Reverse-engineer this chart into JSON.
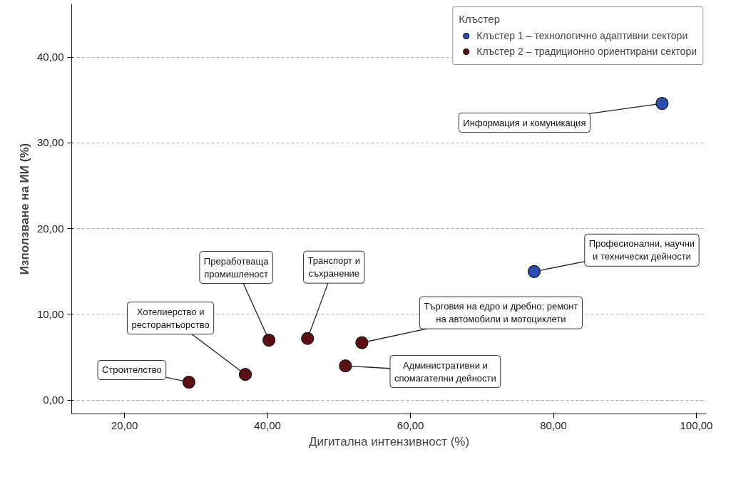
{
  "chart_data": {
    "type": "scatter",
    "xlabel": "Дигитална интензивност (%)",
    "ylabel": "Използване на ИИ (%)",
    "legend_title": "Клъстер",
    "legend": "top right",
    "grid": "y",
    "marker": "circle",
    "xlim": [
      12.6,
      101.4
    ],
    "ylim": [
      -1.6,
      46.2
    ],
    "xticks": [
      {
        "value": 20,
        "label": "20,00"
      },
      {
        "value": 40,
        "label": "40,00"
      },
      {
        "value": 60,
        "label": "60,00"
      },
      {
        "value": 80,
        "label": "80,00"
      },
      {
        "value": 100,
        "label": "100,00"
      }
    ],
    "yticks": [
      {
        "value": 0,
        "label": "0,00"
      },
      {
        "value": 10,
        "label": "10,00"
      },
      {
        "value": 20,
        "label": "20,00"
      },
      {
        "value": 30,
        "label": "30,00"
      },
      {
        "value": 40,
        "label": "40,00"
      }
    ],
    "series": [
      {
        "name": "Клъстер 1 – технологично адаптивни сектори",
        "color": "#2b4eb5",
        "x": [
          95.2,
          77.3
        ],
        "values": [
          34.6,
          15.0
        ]
      },
      {
        "name": "Клъстер 2 – традиционно ориентирани сектори",
        "color": "#5c1014",
        "x": [
          29.0,
          36.9,
          40.2,
          45.6,
          53.2,
          50.9
        ],
        "values": [
          2.1,
          3.0,
          7.0,
          7.2,
          6.7,
          4.0
        ]
      }
    ],
    "annotations": [
      {
        "text": "Информация и комуникация",
        "x": 95.2,
        "y": 34.6
      },
      {
        "text": "Професионални, научни\nи технически дейности",
        "x": 77.3,
        "y": 15.0
      },
      {
        "text": "Строителство",
        "x": 29.0,
        "y": 2.1
      },
      {
        "text": "Хотелиерство и\nресторантьорство",
        "x": 36.9,
        "y": 3.0
      },
      {
        "text": "Преработваща\nпромишленост",
        "x": 40.2,
        "y": 7.0
      },
      {
        "text": "Транспорт и\nсъхранение",
        "x": 45.6,
        "y": 7.2
      },
      {
        "text": "Търговия на едро и дребно; ремонт\nна автомобили и мотоциклети",
        "x": 53.2,
        "y": 6.7
      },
      {
        "text": "Административни и\nспомагателни дейности",
        "x": 50.9,
        "y": 4.0
      }
    ]
  }
}
